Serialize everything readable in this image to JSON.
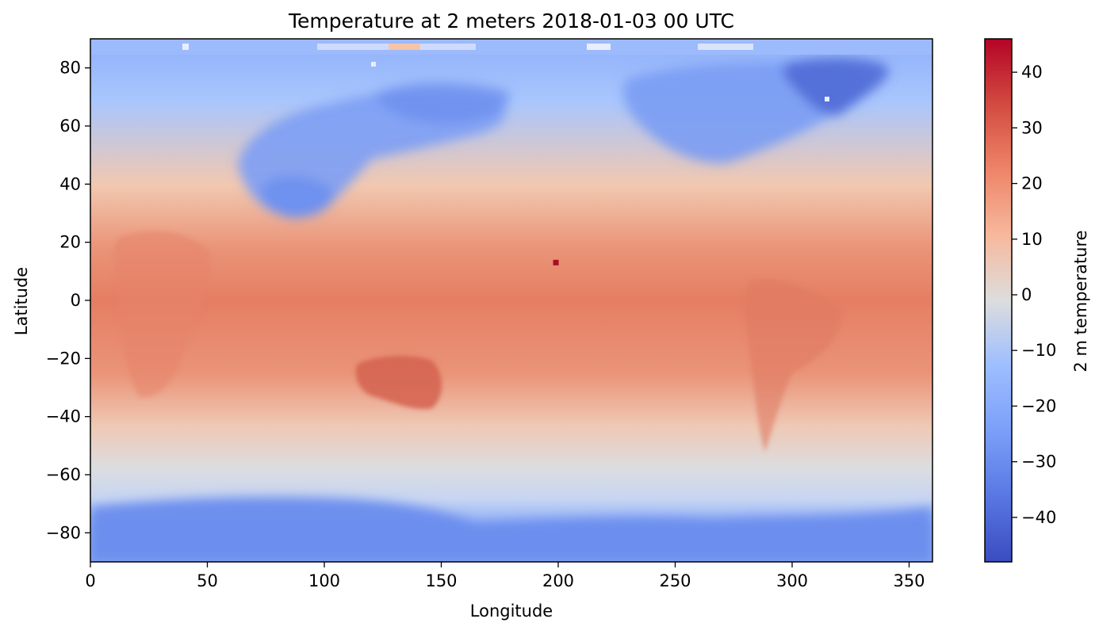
{
  "chart_data": {
    "type": "heatmap",
    "title": "Temperature at 2 meters 2018-01-03 00 UTC",
    "xlabel": "Longitude",
    "ylabel": "Latitude",
    "xlim": [
      0,
      360
    ],
    "ylim": [
      -90,
      90
    ],
    "x_ticks": [
      0,
      50,
      100,
      150,
      200,
      250,
      300,
      350
    ],
    "x_tick_labels": [
      "0",
      "50",
      "100",
      "150",
      "200",
      "250",
      "300",
      "350"
    ],
    "y_ticks": [
      80,
      60,
      40,
      20,
      0,
      -20,
      -40,
      -60,
      -80
    ],
    "y_tick_labels": [
      "80",
      "60",
      "40",
      "20",
      "0",
      "−20",
      "−40",
      "−60",
      "−80"
    ],
    "colorbar": {
      "label": "2 m temperature",
      "colormap": "coolwarm",
      "range": [
        -48,
        46
      ],
      "ticks": [
        40,
        30,
        20,
        10,
        0,
        -10,
        -20,
        -30,
        -40
      ],
      "tick_labels": [
        "40",
        "30",
        "20",
        "10",
        "0",
        "−10",
        "−20",
        "−30",
        "−40"
      ]
    },
    "grid": false,
    "hotspot": {
      "lon": 199,
      "lat": 13
    }
  },
  "colors": {
    "cold": "#3b4cc0",
    "neutral": "#dddddd",
    "warm": "#b40426"
  }
}
